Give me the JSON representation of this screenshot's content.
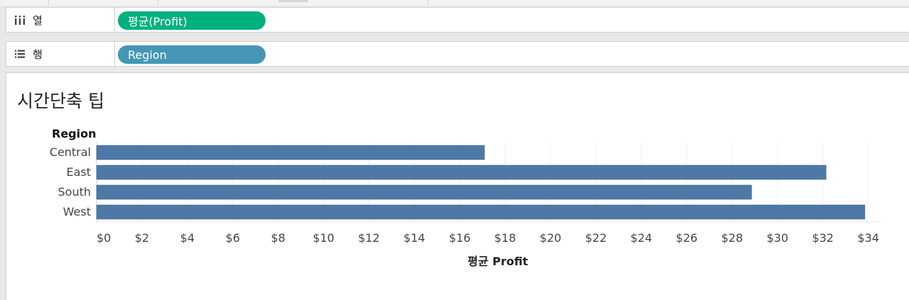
{
  "shelves": {
    "columns": {
      "label": "열",
      "icon": "columns-icon",
      "pill": "평균(Profit)",
      "pill_color": "#00b180"
    },
    "rows": {
      "label": "행",
      "icon": "rows-list-icon",
      "pill": "Region",
      "pill_color": "#4596b4"
    }
  },
  "view": {
    "title": "시간단축 팁"
  },
  "chart_data": {
    "type": "bar",
    "orientation": "horizontal",
    "title": "시간단축 팁",
    "row_header": "Region",
    "categories": [
      "Central",
      "East",
      "South",
      "West"
    ],
    "values": [
      17.09,
      32.14,
      28.86,
      33.85
    ],
    "xlabel": "평균 Profit",
    "xlim": [
      0,
      35
    ],
    "xticks": [
      0,
      2,
      4,
      6,
      8,
      10,
      12,
      14,
      16,
      18,
      20,
      22,
      24,
      26,
      28,
      30,
      32,
      34
    ],
    "xtick_labels": [
      "$0",
      "$2",
      "$4",
      "$6",
      "$8",
      "$10",
      "$12",
      "$14",
      "$16",
      "$18",
      "$20",
      "$22",
      "$24",
      "$26",
      "$28",
      "$30",
      "$32",
      "$34"
    ],
    "bar_color": "#4e79a7",
    "grid": true
  }
}
